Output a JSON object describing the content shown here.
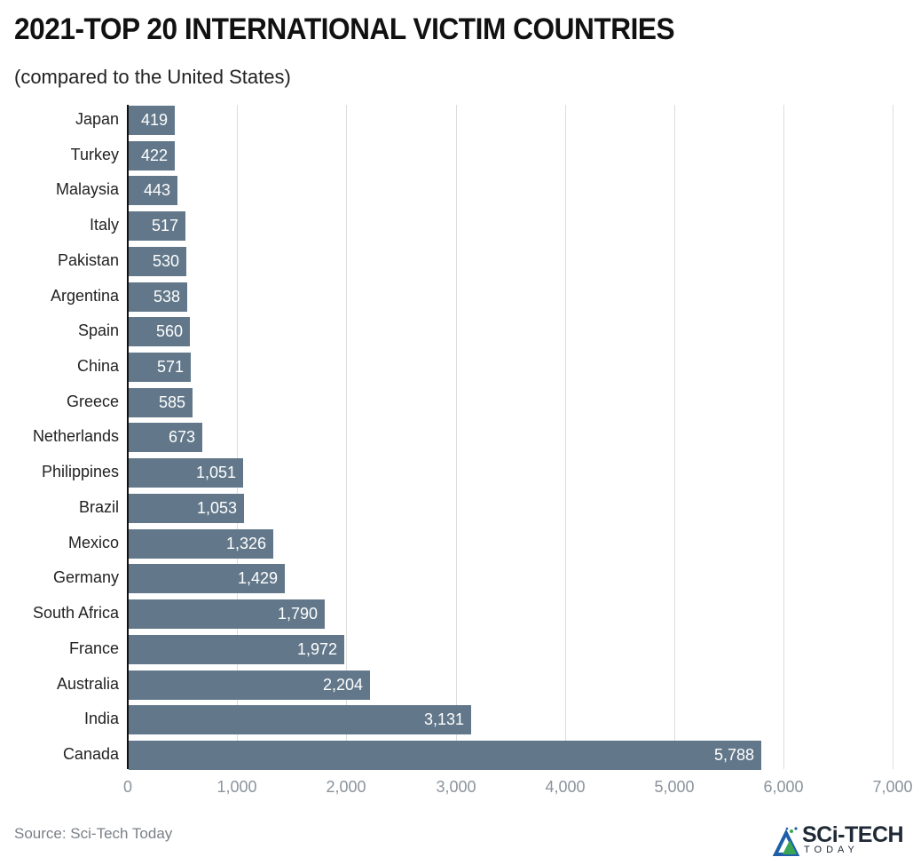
{
  "header": {
    "title": "2021-TOP 20 INTERNATIONAL VICTIM COUNTRIES",
    "subtitle": "(compared to the United States)"
  },
  "footer": {
    "source": "Source: Sci-Tech Today",
    "logo_main": "SCi-TECH",
    "logo_sub": "TODAY"
  },
  "colors": {
    "bar": "#62788a",
    "grid": "#dddddd",
    "axis": "#111111",
    "tick": "#8a939c"
  },
  "chart_data": {
    "type": "bar",
    "orientation": "horizontal",
    "title": "2021-TOP 20 INTERNATIONAL VICTIM COUNTRIES",
    "subtitle": "(compared to the United States)",
    "categories": [
      "Japan",
      "Turkey",
      "Malaysia",
      "Italy",
      "Pakistan",
      "Argentina",
      "Spain",
      "China",
      "Greece",
      "Netherlands",
      "Philippines",
      "Brazil",
      "Mexico",
      "Germany",
      "South Africa",
      "France",
      "Australia",
      "India",
      "Canada"
    ],
    "values": [
      419,
      422,
      443,
      517,
      530,
      538,
      560,
      571,
      585,
      673,
      1051,
      1053,
      1326,
      1429,
      1790,
      1972,
      2204,
      3131,
      5788
    ],
    "value_labels": [
      "419",
      "422",
      "443",
      "517",
      "530",
      "538",
      "560",
      "571",
      "585",
      "673",
      "1,051",
      "1,053",
      "1,326",
      "1,429",
      "1,790",
      "1,972",
      "2,204",
      "3,131",
      "5,788"
    ],
    "xlabel": "",
    "ylabel": "",
    "xlim": [
      0,
      7000
    ],
    "x_ticks": [
      "0",
      "1,000",
      "2,000",
      "3,000",
      "4,000",
      "5,000",
      "6,000",
      "7,000"
    ],
    "grid": true,
    "legend": null,
    "source": "Source: Sci-Tech Today"
  }
}
